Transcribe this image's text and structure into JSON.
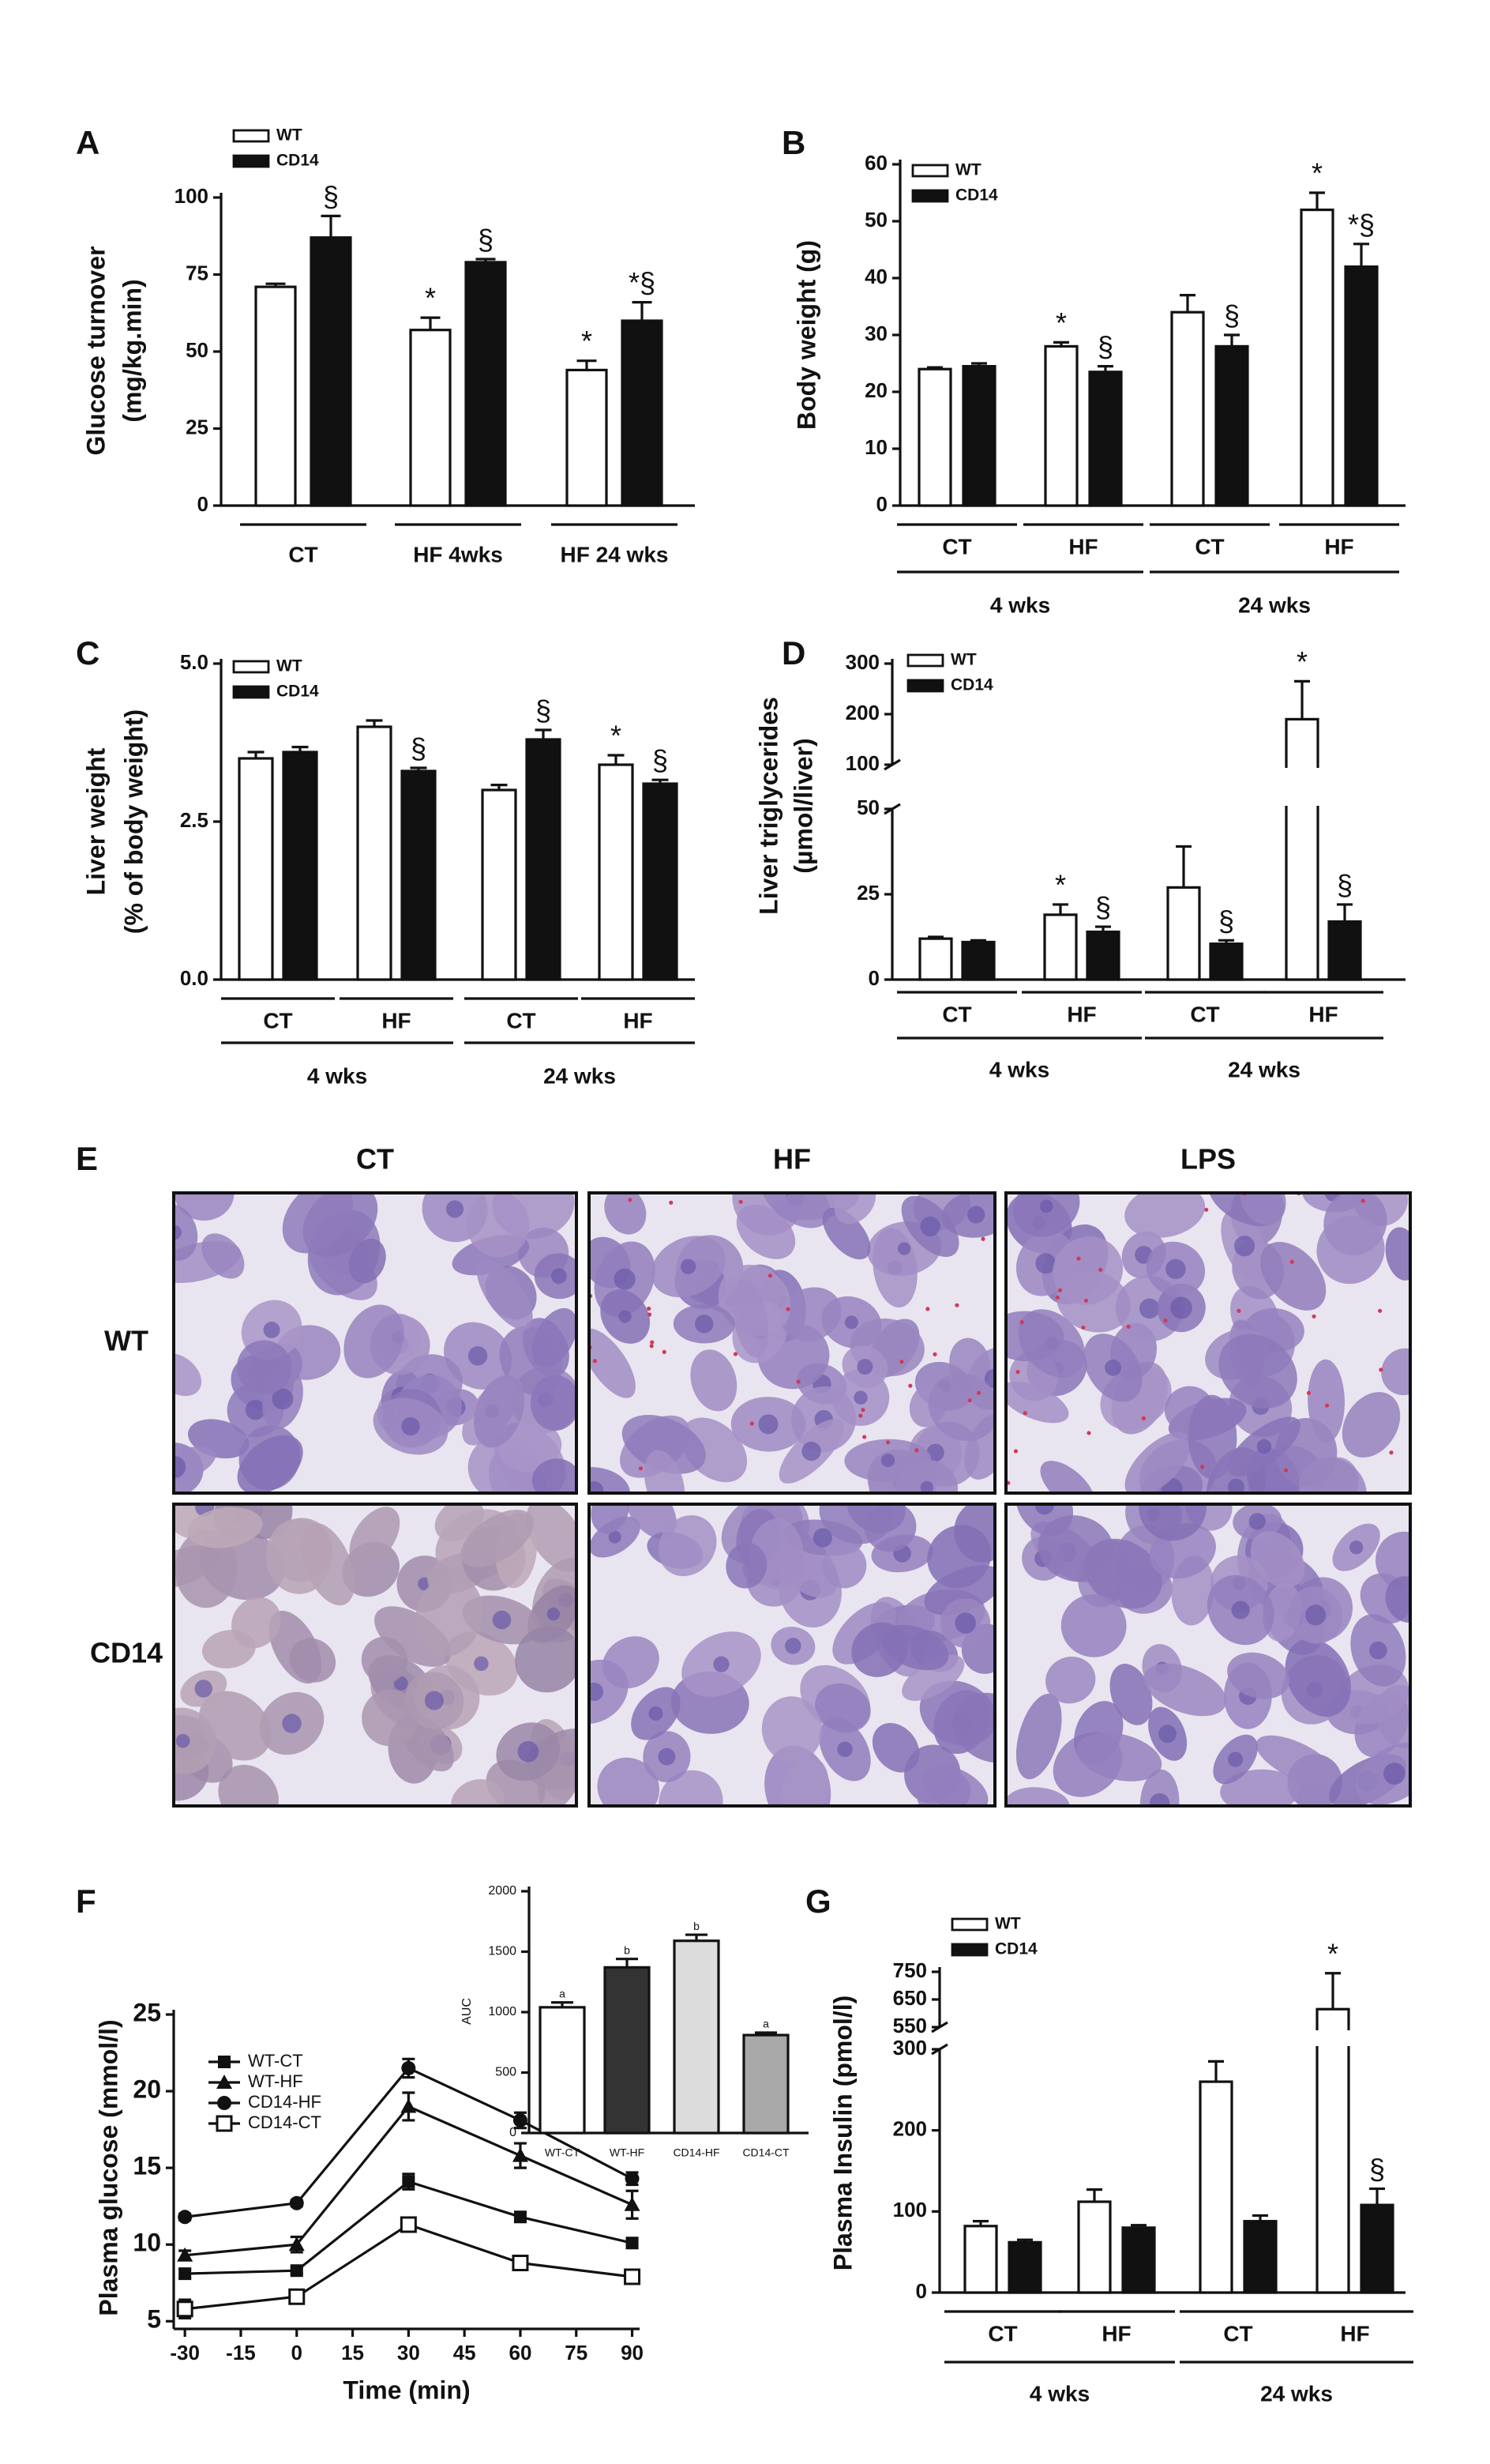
{
  "chart_data": [
    {
      "type": "bar",
      "panel": "A",
      "ylabel": [
        "Glucose turnover",
        "(mg/kg.min)"
      ],
      "categories": [
        "CT",
        "HF 4wks",
        "HF 24 wks"
      ],
      "series": [
        {
          "name": "WT",
          "color": "#ffffff",
          "values": [
            71,
            57,
            44
          ],
          "errors": [
            1,
            4,
            3
          ],
          "marks": [
            null,
            "*",
            "*"
          ]
        },
        {
          "name": "CD14",
          "color": "#111111",
          "values": [
            87,
            79,
            60
          ],
          "errors": [
            7,
            1,
            6
          ],
          "marks": [
            "§",
            "§",
            "*§"
          ]
        }
      ],
      "ylim": [
        0,
        100
      ],
      "yticks": [
        0,
        25,
        50,
        75,
        100
      ]
    },
    {
      "type": "bar",
      "panel": "B",
      "ylabel": "Body weight (g)",
      "categories": [
        "CT",
        "HF",
        "CT",
        "HF"
      ],
      "groups": [
        "4 wks",
        "24 wks"
      ],
      "series": [
        {
          "name": "WT",
          "color": "#ffffff",
          "values": [
            24,
            28,
            34,
            52
          ],
          "errors": [
            0.3,
            0.7,
            3,
            3
          ],
          "marks": [
            null,
            "*",
            null,
            "*"
          ]
        },
        {
          "name": "CD14",
          "color": "#111111",
          "values": [
            24.5,
            23.5,
            28,
            42
          ],
          "errors": [
            0.5,
            1,
            2,
            4
          ],
          "marks": [
            null,
            "§",
            "§",
            "*§"
          ]
        }
      ],
      "ylim": [
        0,
        60
      ],
      "yticks": [
        0,
        10,
        20,
        30,
        40,
        50,
        60
      ]
    },
    {
      "type": "bar",
      "panel": "C",
      "ylabel": [
        "Liver weight",
        "(% of body weight)"
      ],
      "categories": [
        "CT",
        "HF",
        "CT",
        "HF"
      ],
      "groups": [
        "4 wks",
        "24 wks"
      ],
      "series": [
        {
          "name": "WT",
          "color": "#ffffff",
          "values": [
            3.5,
            4.0,
            3.0,
            3.4
          ],
          "errors": [
            0.1,
            0.1,
            0.08,
            0.15
          ],
          "marks": [
            null,
            null,
            null,
            "*"
          ]
        },
        {
          "name": "CD14",
          "color": "#111111",
          "values": [
            3.6,
            3.3,
            3.8,
            3.1
          ],
          "errors": [
            0.08,
            0.05,
            0.15,
            0.06
          ],
          "marks": [
            null,
            "§",
            "§",
            "§"
          ]
        }
      ],
      "ylim": [
        0,
        5
      ],
      "yticks": [
        {
          "value": 0,
          "label": "0.0"
        },
        2.5,
        {
          "value": 5,
          "label": "5.0"
        }
      ]
    },
    {
      "type": "bar",
      "panel": "D",
      "ylabel": [
        "Liver triglycerides",
        "(µmol/liver)"
      ],
      "categories": [
        "CT",
        "HF",
        "CT",
        "HF"
      ],
      "groups": [
        "4 wks",
        "24 wks"
      ],
      "series": [
        {
          "name": "WT",
          "color": "#ffffff",
          "values": [
            12,
            19,
            27,
            190
          ],
          "errors": [
            0.5,
            3,
            12,
            75
          ],
          "marks": [
            null,
            "*",
            null,
            "*"
          ]
        },
        {
          "name": "CD14",
          "color": "#111111",
          "values": [
            11,
            14,
            10.5,
            17
          ],
          "errors": [
            0.5,
            1.5,
            1,
            5
          ],
          "marks": [
            null,
            "§",
            "§",
            "§"
          ]
        }
      ],
      "ylim": [
        0,
        300
      ],
      "break": [
        50,
        100
      ],
      "yticks": [
        0,
        25,
        50,
        100,
        200,
        300
      ]
    },
    {
      "type": "line",
      "panel": "F",
      "xlabel": "Time (min)",
      "ylabel": "Plasma glucose (mmol/l)",
      "x": [
        -30,
        0,
        30,
        60,
        90
      ],
      "series": [
        {
          "name": "WT-CT",
          "color": "#111111",
          "marker": "square",
          "values": [
            8.1,
            8.3,
            14.1,
            11.8,
            10.1
          ],
          "errors": [
            0.3,
            0.2,
            0.5,
            0.3,
            0.3
          ]
        },
        {
          "name": "WT-HF",
          "color": "#111111",
          "marker": "triangle",
          "values": [
            9.3,
            10,
            19,
            15.8,
            12.6
          ],
          "errors": [
            0.3,
            0.5,
            0.9,
            0.8,
            0.9
          ]
        },
        {
          "name": "CD14-HF",
          "color": "#111111",
          "marker": "circle",
          "values": [
            11.8,
            12.7,
            21.5,
            18.1,
            14.3
          ],
          "errors": [
            0.2,
            0.2,
            0.6,
            0.5,
            0.4
          ]
        },
        {
          "name": "CD14-CT",
          "color": "#111111",
          "marker": "square-open",
          "values": [
            5.8,
            6.6,
            11.3,
            8.8,
            7.9
          ],
          "errors": [
            0.6,
            0.3,
            0.3,
            0.2,
            0.2
          ]
        }
      ],
      "xlim": [
        -33,
        92
      ],
      "xticks": [
        -30,
        -15,
        0,
        15,
        30,
        45,
        60,
        75,
        90
      ],
      "ylim": [
        4.5,
        25
      ],
      "yticks": [
        5,
        10,
        15,
        20,
        25
      ]
    },
    {
      "type": "bar",
      "ylabel": "AUC",
      "categories": [
        "WT-CT",
        "WT-HF",
        "CD14-HF",
        "CD14-CT"
      ],
      "values": [
        1040,
        1370,
        1590,
        810
      ],
      "errors": [
        40,
        70,
        50,
        20
      ],
      "marks": [
        "a",
        "b",
        "b",
        "a"
      ],
      "colors": [
        "#ffffff",
        "#333333",
        "#dcdcdc",
        "#a8a8a8"
      ],
      "ylim": [
        0,
        2000
      ],
      "yticks": [
        0,
        500,
        1000,
        1500,
        2000
      ]
    },
    {
      "type": "bar",
      "panel": "G",
      "ylabel": "Plasma Insulin (pmol/l)",
      "categories": [
        "CT",
        "HF",
        "CT",
        "HF"
      ],
      "groups": [
        "4 wks",
        "24 wks"
      ],
      "series": [
        {
          "name": "WT",
          "color": "#ffffff",
          "values": [
            82,
            112,
            260,
            615
          ],
          "errors": [
            6,
            15,
            25,
            130
          ],
          "marks": [
            null,
            null,
            null,
            "*"
          ]
        },
        {
          "name": "CD14",
          "color": "#111111",
          "values": [
            62,
            80,
            88,
            108
          ],
          "errors": [
            3,
            3,
            7,
            20
          ],
          "marks": [
            null,
            null,
            null,
            "§"
          ]
        }
      ],
      "ylim": [
        0,
        750
      ],
      "break": [
        300,
        550
      ],
      "yticks": [
        0,
        100,
        200,
        300,
        550,
        650,
        750
      ]
    }
  ],
  "figure_e": {
    "panel": "E",
    "columns": [
      "CT",
      "HF",
      "LPS"
    ],
    "rows": [
      "WT",
      "CD14"
    ]
  }
}
